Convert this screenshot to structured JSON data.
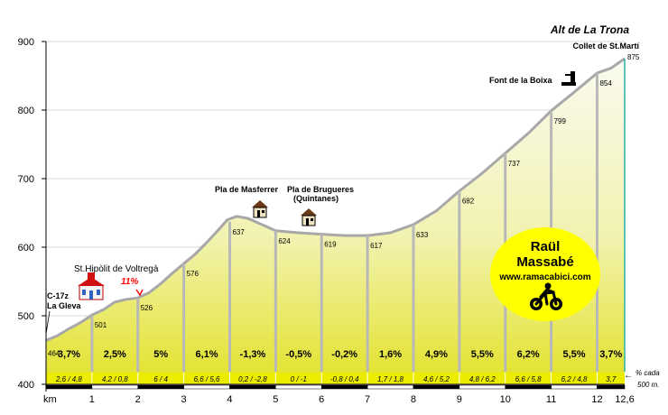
{
  "chart_data": {
    "type": "area",
    "title": "Alt de La Trona",
    "summit_label": "Collet de St.Martí",
    "x_axis": {
      "label": "km",
      "ticks": [
        "1",
        "2",
        "3",
        "4",
        "5",
        "6",
        "7",
        "8",
        "9",
        "10",
        "11",
        "12",
        "12,6"
      ],
      "range": [
        0,
        12.6
      ]
    },
    "y_axis": {
      "ticks": [
        "400",
        "500",
        "600",
        "700",
        "800",
        "900"
      ],
      "range": [
        400,
        900
      ]
    },
    "grid": true,
    "profile": {
      "km": [
        0,
        0.25,
        0.5,
        0.75,
        1,
        1.25,
        1.5,
        1.75,
        2,
        2.25,
        2.5,
        2.75,
        3,
        3.25,
        3.5,
        3.75,
        3.95,
        4.15,
        4.4,
        4.7,
        5,
        5.5,
        6,
        6.5,
        7,
        7.5,
        8,
        8.5,
        9,
        9.5,
        10,
        10.5,
        11,
        11.5,
        12,
        12.3,
        12.6
      ],
      "altitude": [
        464,
        471,
        481,
        490,
        501,
        509,
        520,
        524,
        526,
        534,
        547,
        562,
        576,
        590,
        607,
        625,
        640,
        645,
        642,
        633,
        624,
        621,
        619,
        617,
        617,
        621,
        633,
        653,
        682,
        708,
        737,
        766,
        799,
        826,
        854,
        861,
        875
      ]
    },
    "km_points": [
      {
        "km": 0,
        "alt": 464,
        "label": "464"
      },
      {
        "km": 1,
        "alt": 501,
        "label": "501"
      },
      {
        "km": 2,
        "alt": 526,
        "label": "526"
      },
      {
        "km": 3,
        "alt": 576,
        "label": "576"
      },
      {
        "km": 4,
        "alt": 637,
        "label": "637"
      },
      {
        "km": 5,
        "alt": 624,
        "label": "624"
      },
      {
        "km": 6,
        "alt": 619,
        "label": "619"
      },
      {
        "km": 7,
        "alt": 617,
        "label": "617"
      },
      {
        "km": 8,
        "alt": 633,
        "label": "633"
      },
      {
        "km": 9,
        "alt": 682,
        "label": "682"
      },
      {
        "km": 10,
        "alt": 737,
        "label": "737"
      },
      {
        "km": 11,
        "alt": 799,
        "label": "799"
      },
      {
        "km": 12,
        "alt": 854,
        "label": "854"
      },
      {
        "km": 12.6,
        "alt": 875,
        "label": "875"
      }
    ],
    "segments": [
      {
        "gradient": "3,7%",
        "detail": "2,6 / 4,8"
      },
      {
        "gradient": "2,5%",
        "detail": "4,2 / 0,8"
      },
      {
        "gradient": "5%",
        "detail": "6 / 4"
      },
      {
        "gradient": "6,1%",
        "detail": "6,6 / 5,6"
      },
      {
        "gradient": "-1,3%",
        "detail": "0,2 / -2,8"
      },
      {
        "gradient": "-0,5%",
        "detail": "0 / -1"
      },
      {
        "gradient": "-0,2%",
        "detail": "-0,8 / 0,4"
      },
      {
        "gradient": "1,6%",
        "detail": "1,7 / 1,8"
      },
      {
        "gradient": "4,9%",
        "detail": "4,6 / 5,2"
      },
      {
        "gradient": "5,5%",
        "detail": "4,8 / 6,2"
      },
      {
        "gradient": "6,2%",
        "detail": "6,6 / 5,8"
      },
      {
        "gradient": "5,5%",
        "detail": "6,2 / 4,8"
      },
      {
        "gradient": "3,7%",
        "detail": "3,7"
      }
    ],
    "places": [
      {
        "name": "C-17z",
        "km": 0,
        "alt": 464
      },
      {
        "name": "La Gleva",
        "km": 0,
        "alt": 464
      },
      {
        "name": "St.Hipòlit de Voltregà",
        "km": 2,
        "alt": 526
      },
      {
        "name": "Pla de Masferrer",
        "km": 4.5,
        "alt": 637
      },
      {
        "name": "Pla de Brugueres",
        "km": 5.8,
        "alt": 619
      },
      {
        "name": "(Quintanes)",
        "km": 5.8,
        "alt": 619
      },
      {
        "name": "Font de la Boixa",
        "km": 11.6,
        "alt": 840
      },
      {
        "name": "Collet de St.Martí",
        "km": 12.6,
        "alt": 875
      }
    ],
    "max_gradient": {
      "label": "11%",
      "km": 1.95
    },
    "note_lines": [
      "% cada",
      "500 m."
    ],
    "credit": {
      "name_line1": "Raül",
      "name_line2": "Massabé",
      "url": "www.ramacabici.com"
    }
  },
  "colors": {
    "fill_top": "#f8f8e0",
    "fill_bottom": "#e4e42a",
    "strip": "#ecec00",
    "profile_line": "#a8a8a8",
    "summit_line": "#2ab0a8",
    "gradient_red": "#ff0000",
    "credit_yellow": "#ffff00"
  },
  "icons": [
    "house-icon",
    "church-icon",
    "fountain-icon",
    "cyclist-icon"
  ]
}
